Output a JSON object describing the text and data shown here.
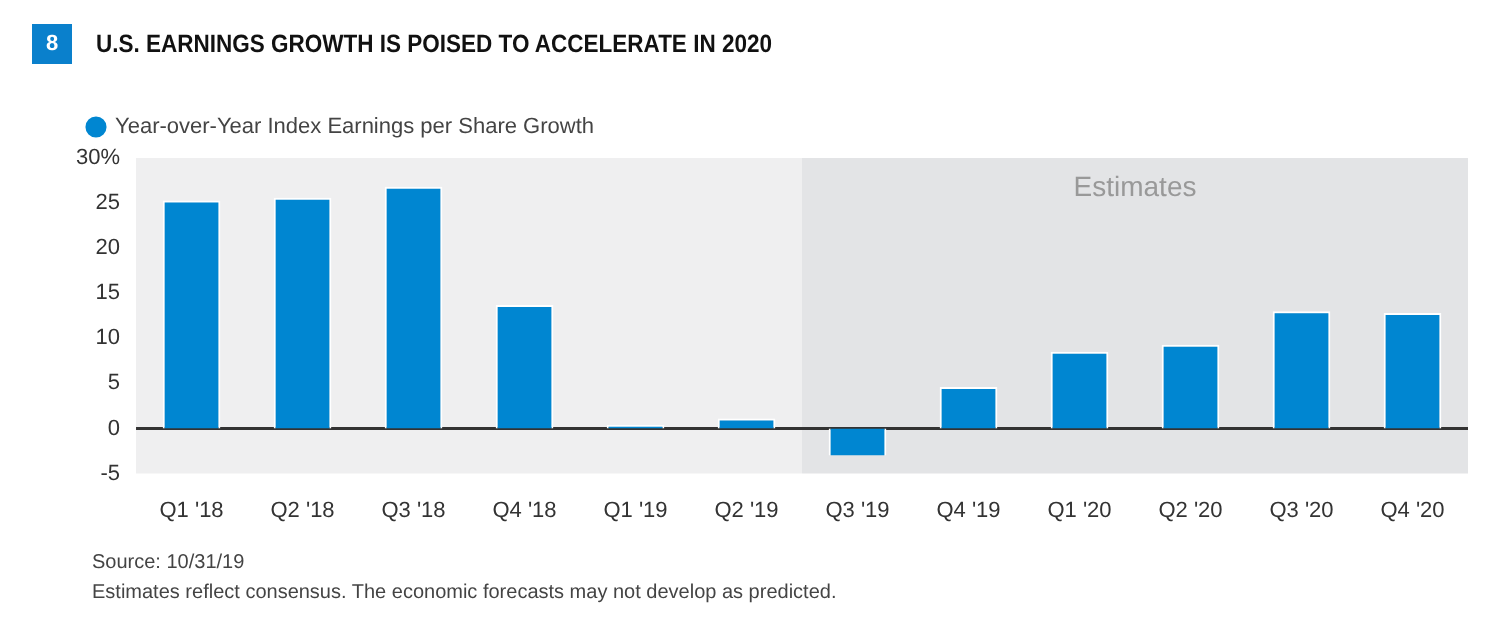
{
  "chart_data": {
    "type": "bar",
    "title": "U.S. EARNINGS GROWTH IS POISED TO ACCELERATE IN 2020",
    "categories": [
      "Q1 '18",
      "Q2 '18",
      "Q3 '18",
      "Q4 '18",
      "Q1 '19",
      "Q2 '19",
      "Q3 '19",
      "Q4 '19",
      "Q1 '20",
      "Q2 '20",
      "Q3 '20",
      "Q4 '20"
    ],
    "series": [
      {
        "name": "Year-over-Year Index Earnings per Share Growth",
        "color": "#0086d1",
        "values": [
          25.3,
          25.6,
          26.8,
          13.7,
          0.4,
          1.1,
          -3.0,
          4.6,
          8.5,
          9.3,
          13.0,
          12.8
        ]
      }
    ],
    "ylim": [
      -5,
      30
    ],
    "yticks": [
      -5,
      0,
      5,
      10,
      15,
      20,
      25,
      {
        "value": 30,
        "label": "30%"
      }
    ],
    "grid": false,
    "legend": "top left",
    "bands": [
      {
        "axis": "x",
        "from": "Q1 '18",
        "to": "Q2 '19",
        "label": null,
        "color": "#efeff0"
      },
      {
        "axis": "x",
        "from": "Q3 '19",
        "to": "Q4 '20",
        "label": "Estimates",
        "color": "#e3e4e6"
      }
    ],
    "ref_lines": [
      {
        "axis": "y",
        "value": 0,
        "label": null,
        "color": "#333333"
      }
    ],
    "annotations": [
      "8",
      "Source: 10/31/19",
      "Estimates reflect consensus. The economic forecasts may not develop as predicted."
    ]
  }
}
